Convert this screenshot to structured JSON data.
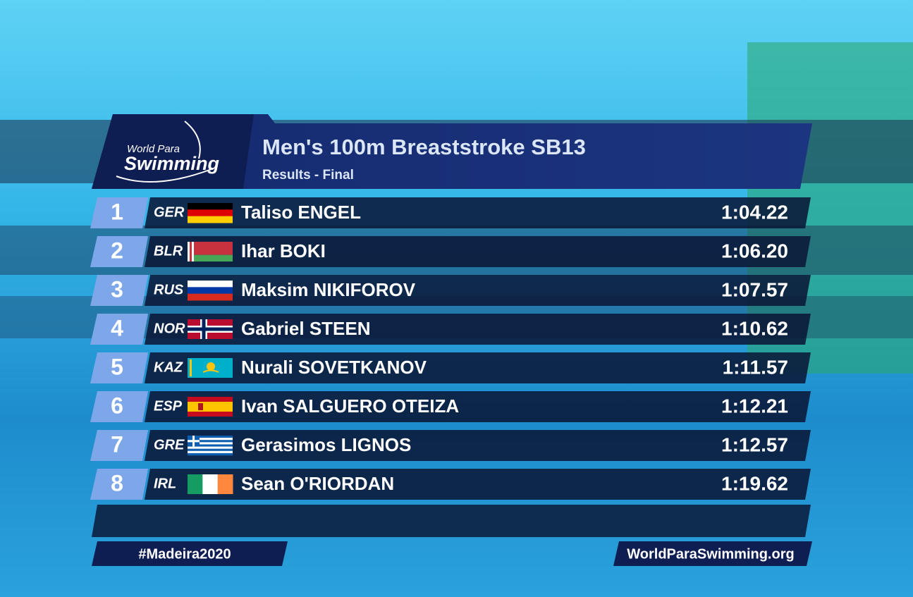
{
  "logo": {
    "line1": "World Para",
    "line2": "Swimming"
  },
  "header": {
    "title": "Men's 100m Breaststroke SB13",
    "subtitle": "Results - Final"
  },
  "results": [
    {
      "rank": 1,
      "country": "GER",
      "name": "Taliso ENGEL",
      "time": "1:04.22"
    },
    {
      "rank": 2,
      "country": "BLR",
      "name": "Ihar BOKI",
      "time": "1:06.20"
    },
    {
      "rank": 3,
      "country": "RUS",
      "name": "Maksim NIKIFOROV",
      "time": "1:07.57"
    },
    {
      "rank": 4,
      "country": "NOR",
      "name": "Gabriel STEEN",
      "time": "1:10.62"
    },
    {
      "rank": 5,
      "country": "KAZ",
      "name": "Nurali SOVETKANOV",
      "time": "1:11.57"
    },
    {
      "rank": 6,
      "country": "ESP",
      "name": "Ivan SALGUERO OTEIZA",
      "time": "1:12.21"
    },
    {
      "rank": 7,
      "country": "GRE",
      "name": "Gerasimos LIGNOS",
      "time": "1:12.57"
    },
    {
      "rank": 8,
      "country": "IRL",
      "name": "Sean O'RIORDAN",
      "time": "1:19.62"
    }
  ],
  "footer": {
    "hashtag": "#Madeira2020",
    "website": "WorldParaSwimming.org"
  }
}
